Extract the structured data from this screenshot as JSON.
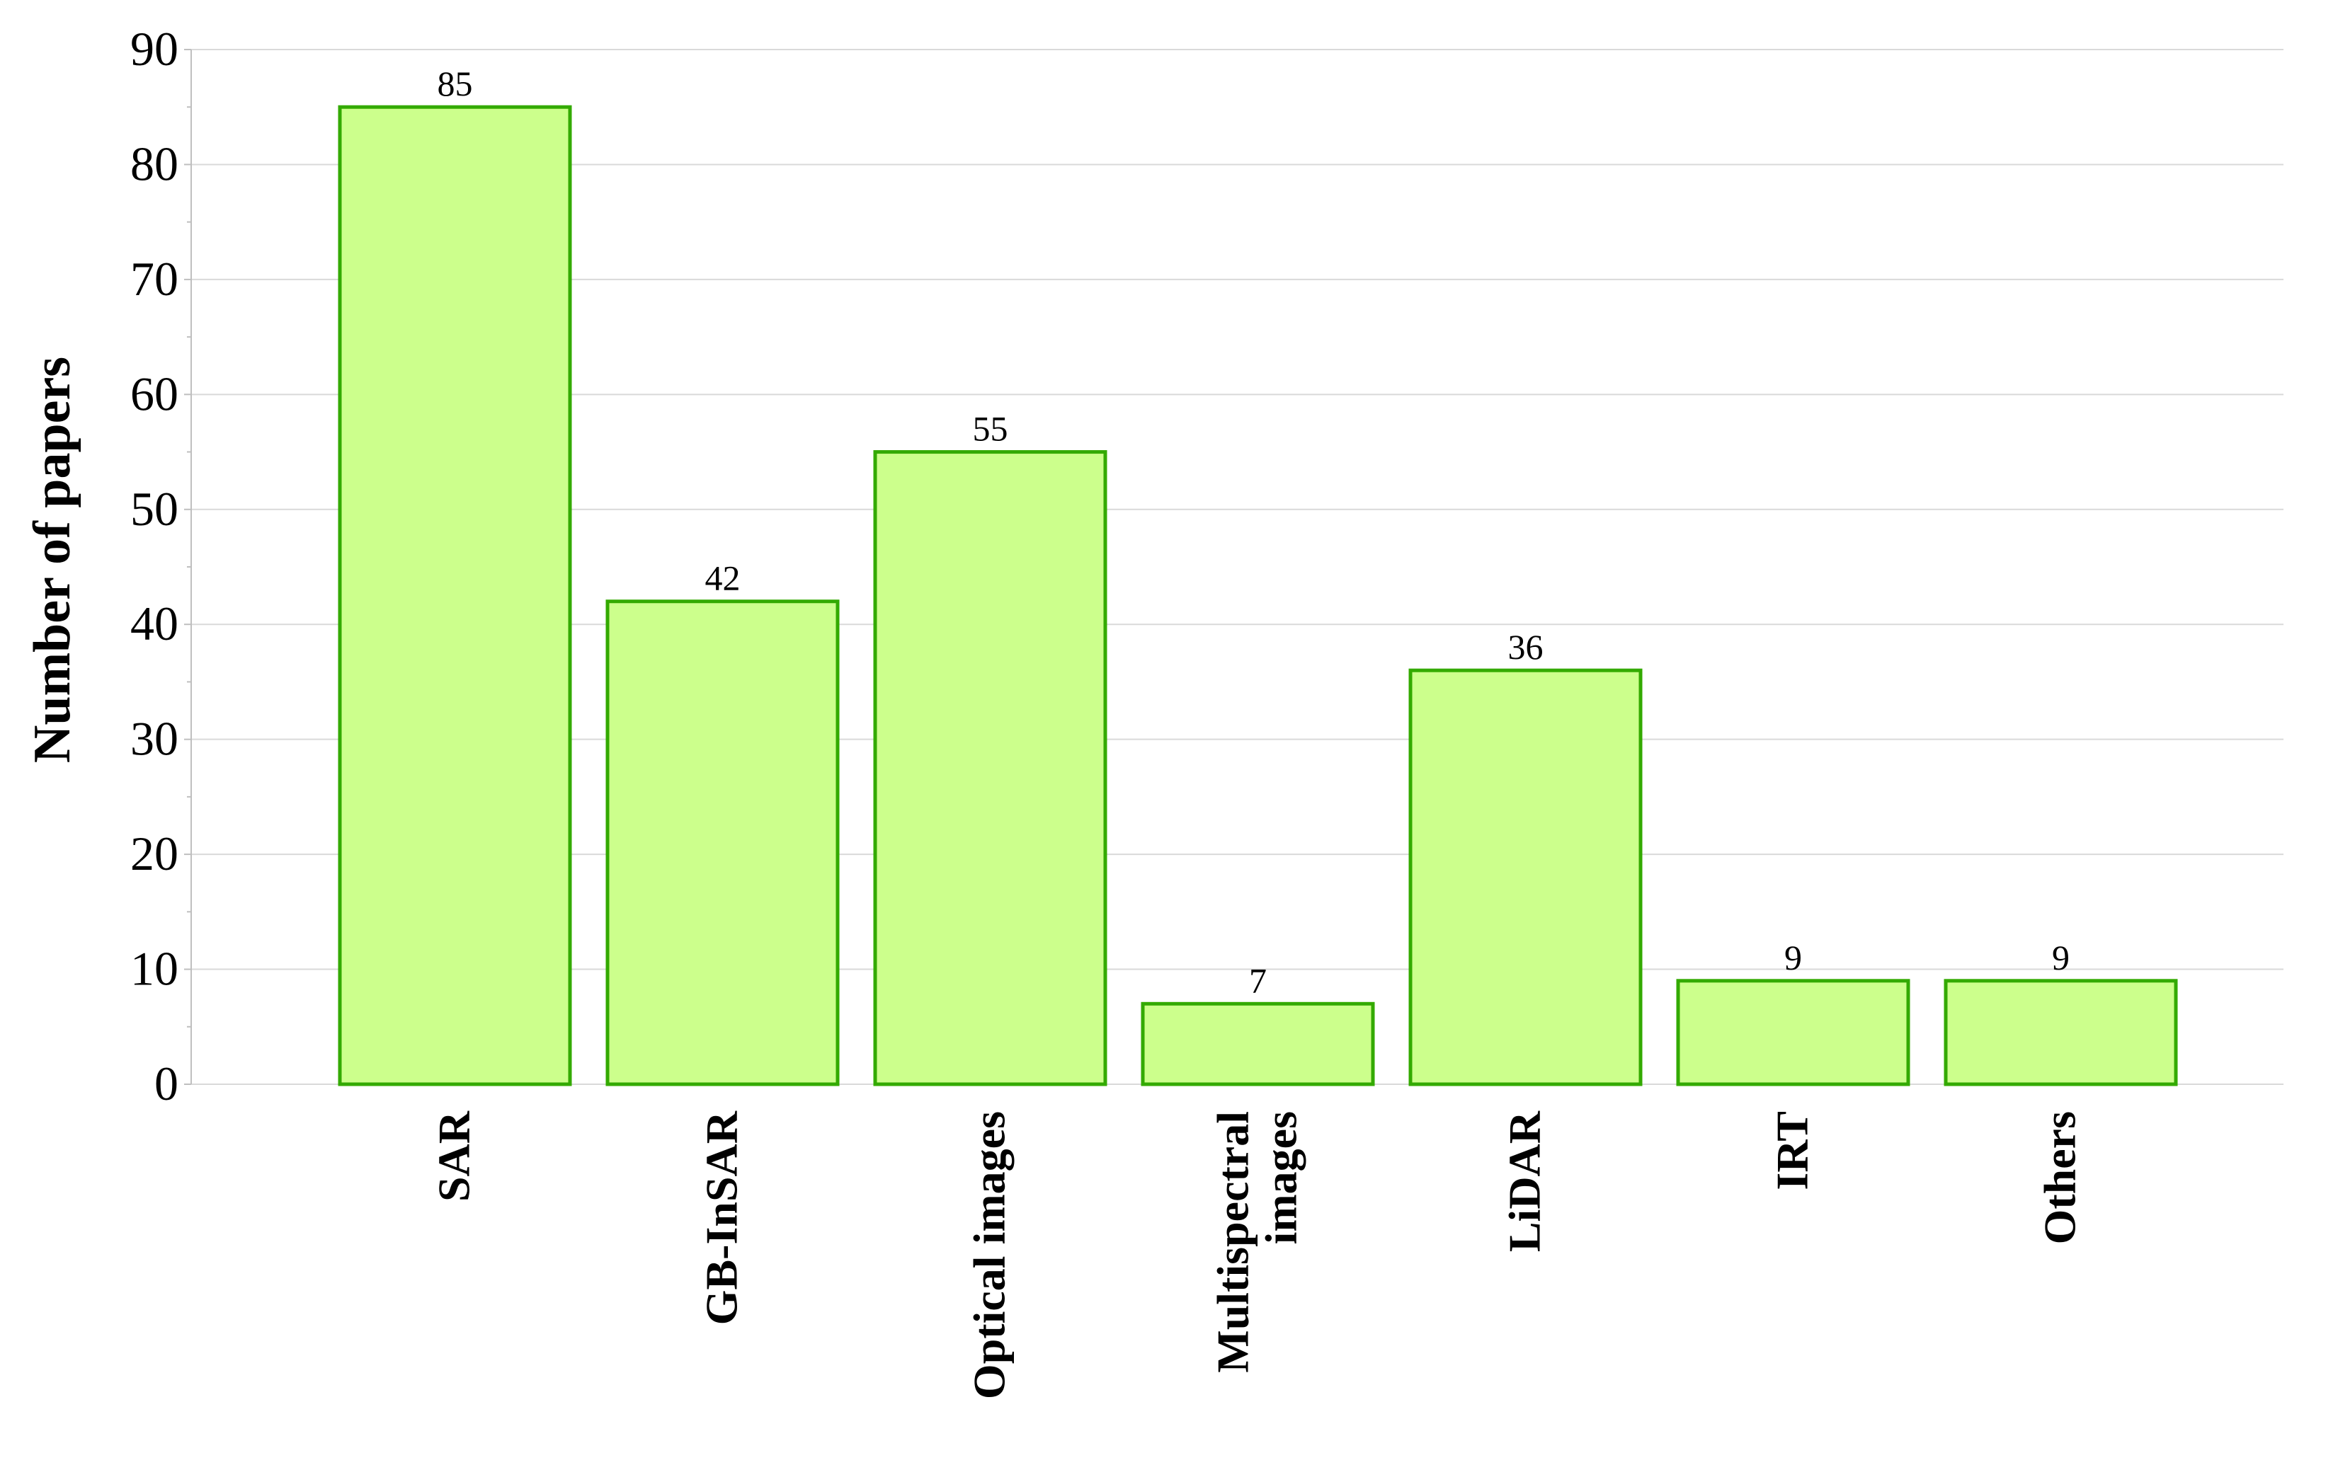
{
  "chart_data": {
    "type": "bar",
    "title": "",
    "xlabel": "",
    "ylabel": "Number of papers",
    "categories": [
      "SAR",
      "GB-InSAR",
      "Optical images",
      "Multispectral images",
      "LiDAR",
      "IRT",
      "Others"
    ],
    "category_lines": [
      [
        "SAR"
      ],
      [
        "GB-InSAR"
      ],
      [
        "Optical images"
      ],
      [
        "Multispectral",
        "images"
      ],
      [
        "LiDAR"
      ],
      [
        "IRT"
      ],
      [
        "Others"
      ]
    ],
    "values": [
      85,
      42,
      55,
      7,
      36,
      9,
      9
    ],
    "data_labels": [
      "85",
      "42",
      "55",
      "7",
      "36",
      "9",
      "9"
    ],
    "ylim": [
      0,
      90
    ],
    "yticks": [
      0,
      10,
      20,
      30,
      40,
      50,
      60,
      70,
      80,
      90
    ],
    "minor_ticks_per_major": 2,
    "grid": true,
    "legend": "none",
    "colors": {
      "bar_fill": "#ccff8c",
      "bar_stroke": "#33aa00",
      "grid": "#d9d9d9",
      "axis": "#bfbfbf"
    }
  }
}
